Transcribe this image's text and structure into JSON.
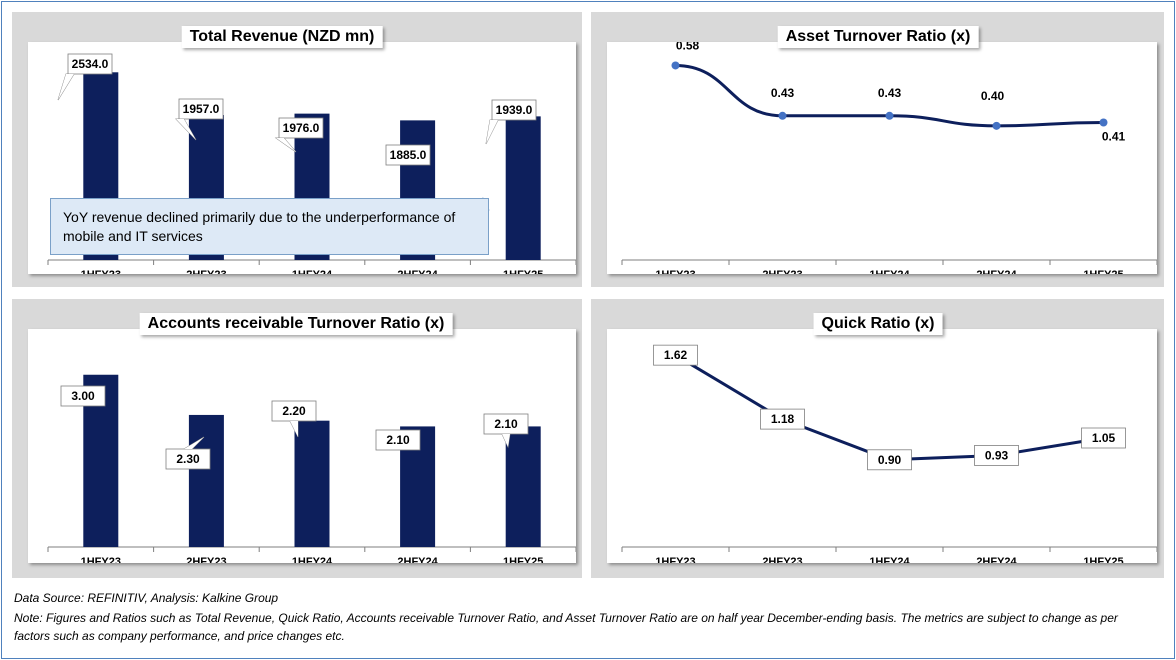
{
  "chart_data": [
    {
      "type": "bar",
      "title": "Total Revenue (NZD mn)",
      "categories": [
        "1HFY23",
        "2HFY23",
        "1HFY24",
        "2HFY24",
        "1HFY25"
      ],
      "values": [
        2534.0,
        1957.0,
        1976.0,
        1885.0,
        1939.0
      ],
      "labels": [
        "2534.0",
        "1957.0",
        "1976.0",
        "1885.0",
        "1939.0"
      ],
      "ylim": [
        0,
        2700
      ],
      "annotation": "YoY revenue declined primarily due to the underperformance of mobile and IT services",
      "color": "#0d1f5c"
    },
    {
      "type": "line",
      "title": "Asset Turnover Ratio (x)",
      "categories": [
        "1HFY23",
        "2HFY23",
        "1HFY24",
        "2HFY24",
        "1HFY25"
      ],
      "values": [
        0.58,
        0.43,
        0.43,
        0.4,
        0.41
      ],
      "labels": [
        "0.58",
        "0.43",
        "0.43",
        "0.40",
        "0.41"
      ],
      "ylim": [
        0,
        0.65
      ],
      "color": "#0d1f5c",
      "marker_color": "#4472c4"
    },
    {
      "type": "bar",
      "title": "Accounts receivable Turnover Ratio (x)",
      "categories": [
        "1HFY23",
        "2HFY23",
        "1HFY24",
        "2HFY24",
        "1HFY25"
      ],
      "values": [
        3.0,
        2.3,
        2.2,
        2.1,
        2.1
      ],
      "labels": [
        "3.00",
        "2.30",
        "2.20",
        "2.10",
        "2.10"
      ],
      "ylim": [
        0,
        3.1
      ],
      "color": "#0d1f5c"
    },
    {
      "type": "line",
      "title": "Quick Ratio (x)",
      "categories": [
        "1HFY23",
        "2HFY23",
        "1HFY24",
        "2HFY24",
        "1HFY25"
      ],
      "values": [
        1.62,
        1.18,
        0.9,
        0.93,
        1.05
      ],
      "labels": [
        "1.62",
        "1.18",
        "0.90",
        "0.93",
        "1.05"
      ],
      "ylim": [
        0.3,
        1.8
      ],
      "color": "#0d1f5c"
    }
  ],
  "footer": {
    "source": "Data Source: REFINITIV, Analysis: Kalkine Group",
    "note_line1": "Note: Figures and Ratios such as Total Revenue, Quick Ratio, Accounts receivable Turnover Ratio, and Asset Turnover Ratio are on half year December-ending basis. The metrics are subject to change as per",
    "note_line2": "factors such as company performance, and price changes etc."
  }
}
